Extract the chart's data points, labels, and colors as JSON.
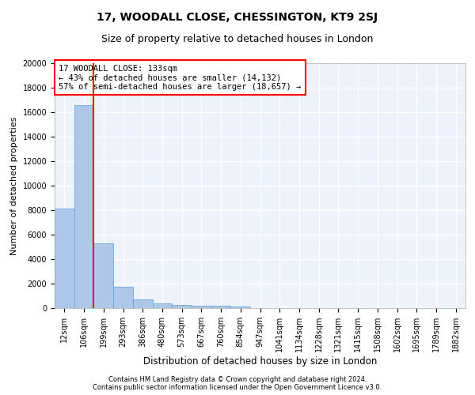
{
  "title": "17, WOODALL CLOSE, CHESSINGTON, KT9 2SJ",
  "subtitle": "Size of property relative to detached houses in London",
  "xlabel": "Distribution of detached houses by size in London",
  "ylabel": "Number of detached properties",
  "footer_line1": "Contains HM Land Registry data © Crown copyright and database right 2024.",
  "footer_line2": "Contains public sector information licensed under the Open Government Licence v3.0.",
  "categories": [
    "12sqm",
    "106sqm",
    "199sqm",
    "293sqm",
    "386sqm",
    "480sqm",
    "573sqm",
    "667sqm",
    "760sqm",
    "854sqm",
    "947sqm",
    "1041sqm",
    "1134sqm",
    "1228sqm",
    "1321sqm",
    "1415sqm",
    "1508sqm",
    "1602sqm",
    "1695sqm",
    "1789sqm",
    "1882sqm"
  ],
  "values": [
    8100,
    16600,
    5300,
    1750,
    700,
    380,
    290,
    220,
    170,
    130,
    0,
    0,
    0,
    0,
    0,
    0,
    0,
    0,
    0,
    0,
    0
  ],
  "bar_color": "#aec6e8",
  "bar_edge_color": "#5a9fd4",
  "vline_x": 1.5,
  "vline_color": "red",
  "annotation_title": "17 WOODALL CLOSE: 133sqm",
  "annotation_line1": "← 43% of detached houses are smaller (14,132)",
  "annotation_line2": "57% of semi-detached houses are larger (18,657) →",
  "annotation_box_color": "red",
  "ylim": [
    0,
    20000
  ],
  "yticks": [
    0,
    2000,
    4000,
    6000,
    8000,
    10000,
    12000,
    14000,
    16000,
    18000,
    20000
  ],
  "bg_color": "#eef2fa",
  "grid_color": "#ffffff",
  "title_fontsize": 10,
  "subtitle_fontsize": 9,
  "ylabel_fontsize": 8,
  "xlabel_fontsize": 8.5,
  "tick_fontsize": 7,
  "annotation_fontsize": 7.5,
  "footer_fontsize": 6
}
